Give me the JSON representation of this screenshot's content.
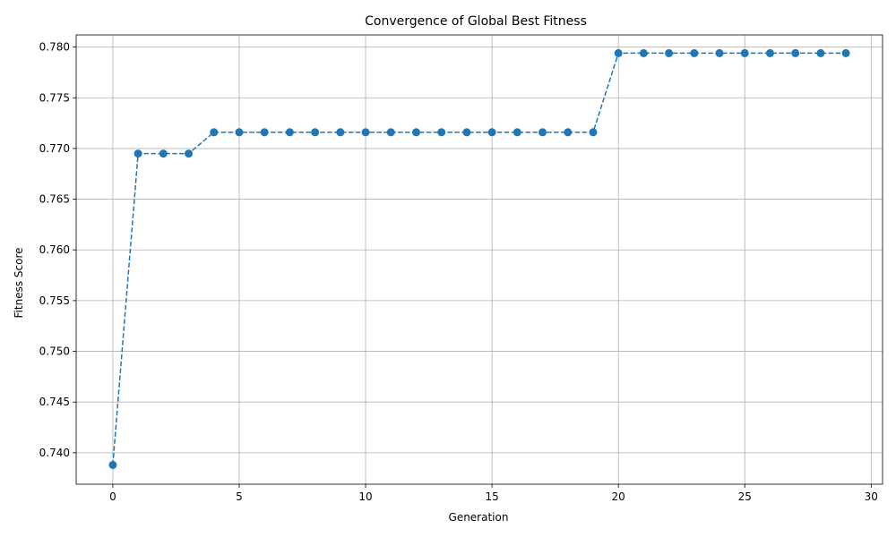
{
  "chart_data": {
    "type": "line",
    "title": "Convergence of Global Best Fitness",
    "xlabel": "Generation",
    "ylabel": "Fitness Score",
    "xlim": [
      -1.45,
      30.45
    ],
    "ylim": [
      0.7369,
      0.7812
    ],
    "x_ticks": [
      0,
      5,
      10,
      15,
      20,
      25,
      30
    ],
    "y_ticks": [
      0.74,
      0.745,
      0.75,
      0.755,
      0.76,
      0.765,
      0.77,
      0.775,
      0.78
    ],
    "x_tick_labels": [
      "0",
      "5",
      "10",
      "15",
      "20",
      "25",
      "30"
    ],
    "y_tick_labels": [
      "0.740",
      "0.745",
      "0.750",
      "0.755",
      "0.760",
      "0.765",
      "0.770",
      "0.775",
      "0.780"
    ],
    "grid": true,
    "line_style": "dashed",
    "marker": "circle",
    "color": "#1f77b4",
    "series": [
      {
        "x": [
          0,
          1,
          2,
          3,
          4,
          5,
          6,
          7,
          8,
          9,
          10,
          11,
          12,
          13,
          14,
          15,
          16,
          17,
          18,
          19,
          20,
          21,
          22,
          23,
          24,
          25,
          26,
          27,
          28,
          29
        ],
        "values": [
          0.7388,
          0.7695,
          0.7695,
          0.7695,
          0.7716,
          0.7716,
          0.7716,
          0.7716,
          0.7716,
          0.7716,
          0.7716,
          0.7716,
          0.7716,
          0.7716,
          0.7716,
          0.7716,
          0.7716,
          0.7716,
          0.7716,
          0.7716,
          0.7794,
          0.7794,
          0.7794,
          0.7794,
          0.7794,
          0.7794,
          0.7794,
          0.7794,
          0.7794,
          0.7794
        ]
      }
    ]
  }
}
